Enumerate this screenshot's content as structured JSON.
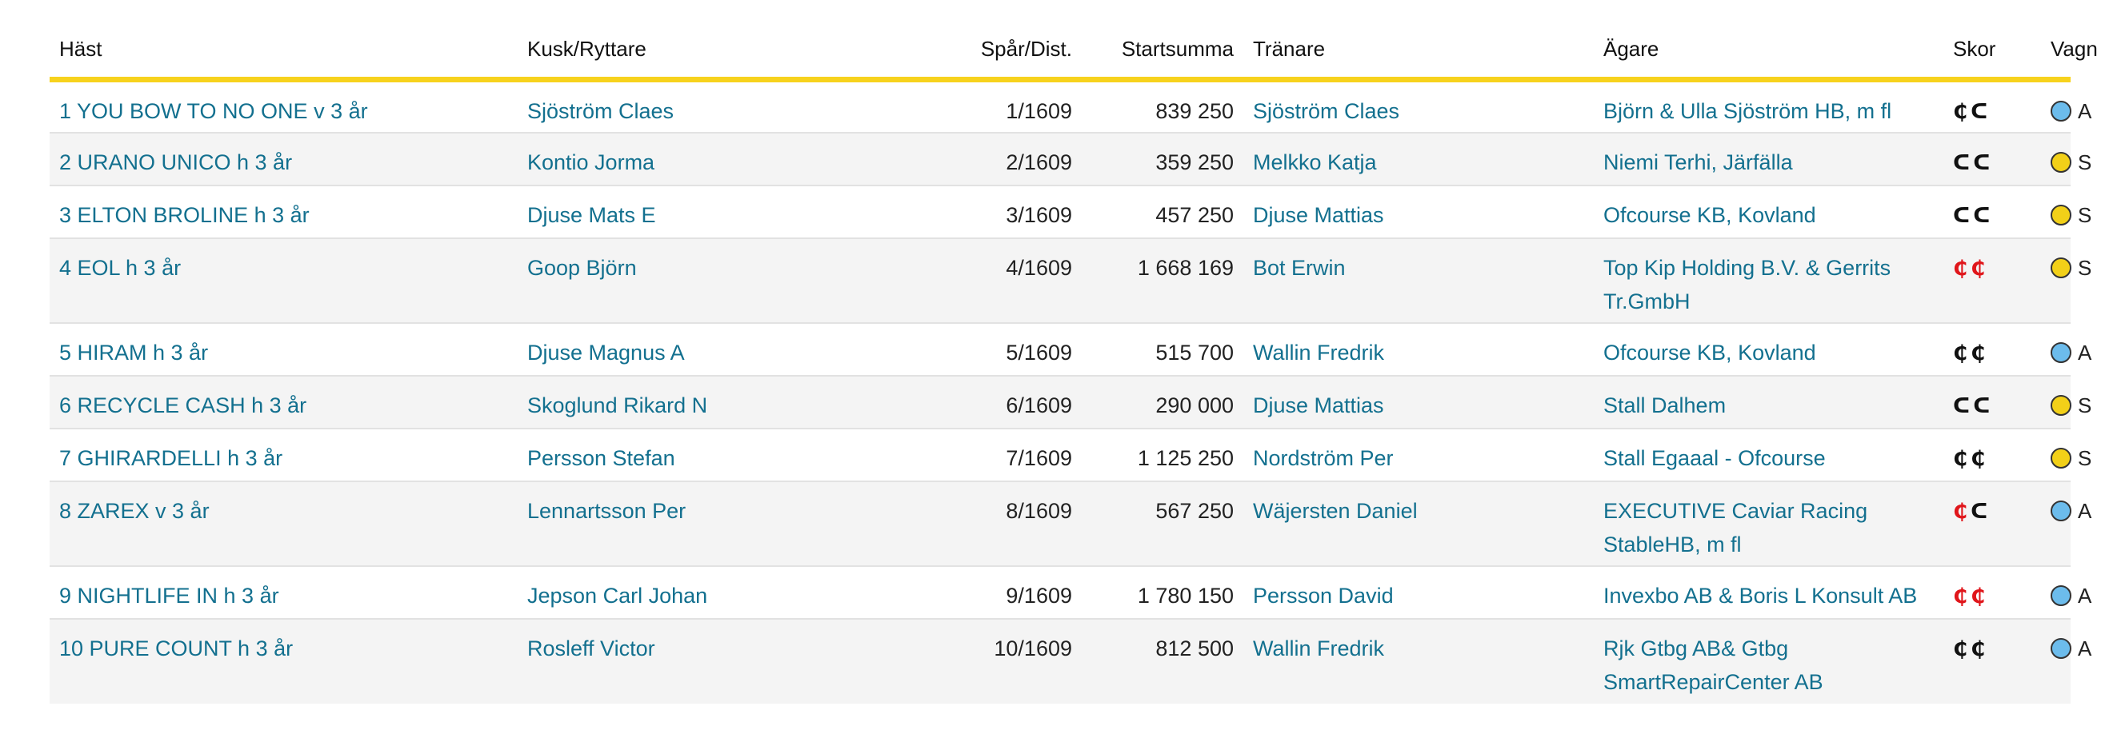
{
  "headers": {
    "horse": "Häst",
    "driver": "Kusk/Ryttare",
    "track": "Spår/Dist.",
    "earnings": "Startsumma",
    "trainer": "Tränare",
    "owner": "Ägare",
    "shoes": "Skor",
    "wagon": "Vagn"
  },
  "colors": {
    "accent": "#f7d21d",
    "link": "#13708f",
    "shoe_removed": "#e0161b",
    "wagon_american": "#6cbcec",
    "wagon_swedish": "#f2d018"
  },
  "rows": [
    {
      "horse": "1 YOU BOW TO NO ONE v 3 år",
      "driver": "Sjöström Claes",
      "track": "1/1609",
      "earnings": "839 250",
      "trainer": "Sjöström Claes",
      "owner": "Björn & Ulla Sjöström HB, m fl",
      "shoe_front": "₵",
      "shoe_front_state": "on",
      "shoe_back": "ᑕ",
      "shoe_back_state": "on",
      "wagon_color": "blue",
      "wagon": "A"
    },
    {
      "horse": "2 URANO UNICO h 3 år",
      "driver": "Kontio Jorma",
      "track": "2/1609",
      "earnings": "359 250",
      "trainer": "Melkko Katja",
      "owner": "Niemi Terhi, Järfälla",
      "shoe_front": "ᑕ",
      "shoe_front_state": "on",
      "shoe_back": "ᑕ",
      "shoe_back_state": "on",
      "wagon_color": "yellow",
      "wagon": "S"
    },
    {
      "horse": "3 ELTON BROLINE h 3 år",
      "driver": "Djuse Mats E",
      "track": "3/1609",
      "earnings": "457 250",
      "trainer": "Djuse Mattias",
      "owner": "Ofcourse KB, Kovland",
      "shoe_front": "ᑕ",
      "shoe_front_state": "on",
      "shoe_back": "ᑕ",
      "shoe_back_state": "on",
      "wagon_color": "yellow",
      "wagon": "S"
    },
    {
      "horse": "4 EOL h 3 år",
      "driver": "Goop Björn",
      "track": "4/1609",
      "earnings": "1 668 169",
      "trainer": "Bot Erwin",
      "owner": "Top Kip Holding B.V. & Gerrits Tr.GmbH",
      "shoe_front": "₵",
      "shoe_front_state": "red",
      "shoe_back": "₵",
      "shoe_back_state": "red",
      "wagon_color": "yellow",
      "wagon": "S"
    },
    {
      "horse": "5 HIRAM h 3 år",
      "driver": "Djuse Magnus A",
      "track": "5/1609",
      "earnings": "515 700",
      "trainer": "Wallin Fredrik",
      "owner": "Ofcourse KB, Kovland",
      "shoe_front": "₵",
      "shoe_front_state": "on",
      "shoe_back": "₵",
      "shoe_back_state": "on",
      "wagon_color": "blue",
      "wagon": "A"
    },
    {
      "horse": "6 RECYCLE CASH h 3 år",
      "driver": "Skoglund Rikard N",
      "track": "6/1609",
      "earnings": "290 000",
      "trainer": "Djuse Mattias",
      "owner": "Stall Dalhem",
      "shoe_front": "ᑕ",
      "shoe_front_state": "on",
      "shoe_back": "ᑕ",
      "shoe_back_state": "on",
      "wagon_color": "yellow",
      "wagon": "S"
    },
    {
      "horse": "7 GHIRARDELLI h 3 år",
      "driver": "Persson Stefan",
      "track": "7/1609",
      "earnings": "1 125 250",
      "trainer": "Nordström Per",
      "owner": "Stall Egaaal - Ofcourse",
      "shoe_front": "₵",
      "shoe_front_state": "on",
      "shoe_back": "₵",
      "shoe_back_state": "on",
      "wagon_color": "yellow",
      "wagon": "S"
    },
    {
      "horse": "8 ZAREX v 3 år",
      "driver": "Lennartsson Per",
      "track": "8/1609",
      "earnings": "567 250",
      "trainer": "Wäjersten Daniel",
      "owner": "EXECUTIVE Caviar Racing StableHB, m fl",
      "shoe_front": "₵",
      "shoe_front_state": "red",
      "shoe_back": "ᑕ",
      "shoe_back_state": "on",
      "wagon_color": "blue",
      "wagon": "A"
    },
    {
      "horse": "9 NIGHTLIFE IN h 3 år",
      "driver": "Jepson Carl Johan",
      "track": "9/1609",
      "earnings": "1 780 150",
      "trainer": "Persson David",
      "owner": "Invexbo AB & Boris L Konsult AB",
      "shoe_front": "₵",
      "shoe_front_state": "red",
      "shoe_back": "₵",
      "shoe_back_state": "red",
      "wagon_color": "blue",
      "wagon": "A"
    },
    {
      "horse": "10 PURE COUNT h 3 år",
      "driver": "Rosleff Victor",
      "track": "10/1609",
      "earnings": "812 500",
      "trainer": "Wallin Fredrik",
      "owner": "Rjk Gtbg AB& Gtbg SmartRepairCenter AB",
      "shoe_front": "₵",
      "shoe_front_state": "on",
      "shoe_back": "₵",
      "shoe_back_state": "on",
      "wagon_color": "blue",
      "wagon": "A"
    }
  ]
}
